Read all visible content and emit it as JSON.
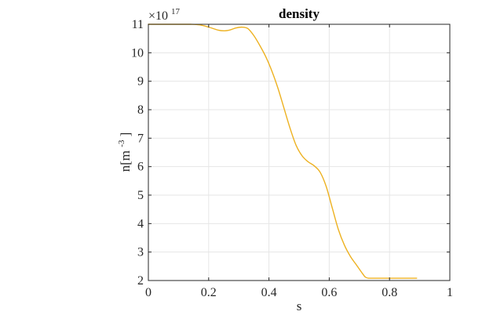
{
  "chart_data": {
    "type": "line",
    "title": "density",
    "xlabel": "s",
    "ylabel": "n[m",
    "ylabel_superscript": "-3",
    "ylabel_suffix": "]",
    "y_multiplier_base": "×10",
    "y_multiplier_exponent": "17",
    "xlim": [
      0,
      1
    ],
    "ylim": [
      2,
      11
    ],
    "x_ticks": [
      0,
      0.2,
      0.4,
      0.6,
      0.8,
      1
    ],
    "x_tick_labels": [
      "0",
      "0.2",
      "0.4",
      "0.6",
      "0.8",
      "1"
    ],
    "y_ticks": [
      2,
      3,
      4,
      5,
      6,
      7,
      8,
      9,
      10,
      11
    ],
    "y_tick_labels": [
      "2",
      "3",
      "4",
      "5",
      "6",
      "7",
      "8",
      "9",
      "10",
      "11"
    ],
    "grid": true,
    "box": true,
    "series": [
      {
        "color": "#EDB120",
        "x": [
          0,
          0.05,
          0.1,
          0.14,
          0.17,
          0.2,
          0.23,
          0.25,
          0.27,
          0.29,
          0.31,
          0.33,
          0.35,
          0.37,
          0.39,
          0.41,
          0.43,
          0.45,
          0.47,
          0.49,
          0.51,
          0.53,
          0.55,
          0.57,
          0.59,
          0.61,
          0.63,
          0.65,
          0.67,
          0.69,
          0.71,
          0.72,
          0.73,
          0.75,
          0.8,
          0.85,
          0.89
        ],
        "y": [
          11,
          11,
          11,
          11,
          10.98,
          10.9,
          10.8,
          10.77,
          10.8,
          10.87,
          10.9,
          10.85,
          10.6,
          10.25,
          9.85,
          9.35,
          8.75,
          8.05,
          7.35,
          6.75,
          6.38,
          6.17,
          6.03,
          5.8,
          5.3,
          4.55,
          3.8,
          3.25,
          2.85,
          2.55,
          2.25,
          2.12,
          2.08,
          2.08,
          2.08,
          2.08,
          2.08
        ]
      }
    ]
  }
}
